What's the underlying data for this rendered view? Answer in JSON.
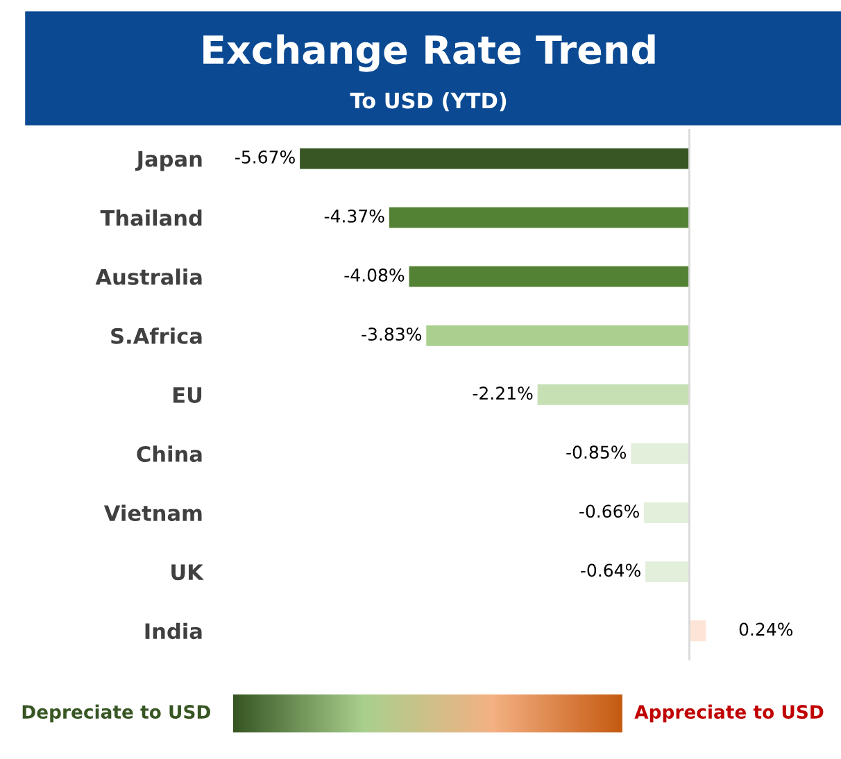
{
  "chart_data": {
    "type": "bar",
    "orientation": "horizontal",
    "title": "Exchange Rate Trend",
    "subtitle": "To USD (YTD)",
    "categories": [
      "Japan",
      "Thailand",
      "Australia",
      "S.Africa",
      "EU",
      "China",
      "Vietnam",
      "UK",
      "India"
    ],
    "values": [
      -5.67,
      -4.37,
      -4.08,
      -3.83,
      -2.21,
      -0.85,
      -0.66,
      -0.64,
      0.24
    ],
    "colors": [
      "#375623",
      "#548235",
      "#548235",
      "#a9d08e",
      "#c6e0b4",
      "#e2efda",
      "#e2efda",
      "#e2efda",
      "#fce4d6"
    ],
    "value_labels": [
      "-5.67%",
      "-4.37%",
      "-4.08%",
      "-3.83%",
      "-2.21%",
      "-0.85%",
      "-0.66%",
      "-0.64%",
      "0.24%"
    ],
    "annotations": [
      "Depreciate to USD",
      "Appreciate to USD"
    ]
  }
}
